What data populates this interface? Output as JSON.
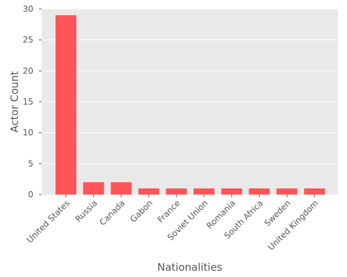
{
  "colors": {
    "bar": "#ff5459",
    "plot_background": "#e9e9e9",
    "grid": "#ffffff",
    "text": "#555555"
  },
  "chart_data": {
    "type": "bar",
    "title": "",
    "xlabel": "Nationalities",
    "ylabel": "Actor Count",
    "categories": [
      "United States",
      "Russia",
      "Canada",
      "Gabon",
      "France",
      "Soviet Union",
      "Romania",
      "South Africa",
      "Sweden",
      "United Kingdom"
    ],
    "values": [
      29,
      2,
      2,
      1,
      1,
      1,
      1,
      1,
      1,
      1
    ],
    "ylim": [
      0,
      30
    ],
    "yticks": [
      0,
      5,
      10,
      15,
      20,
      25,
      30
    ],
    "grid": true
  }
}
